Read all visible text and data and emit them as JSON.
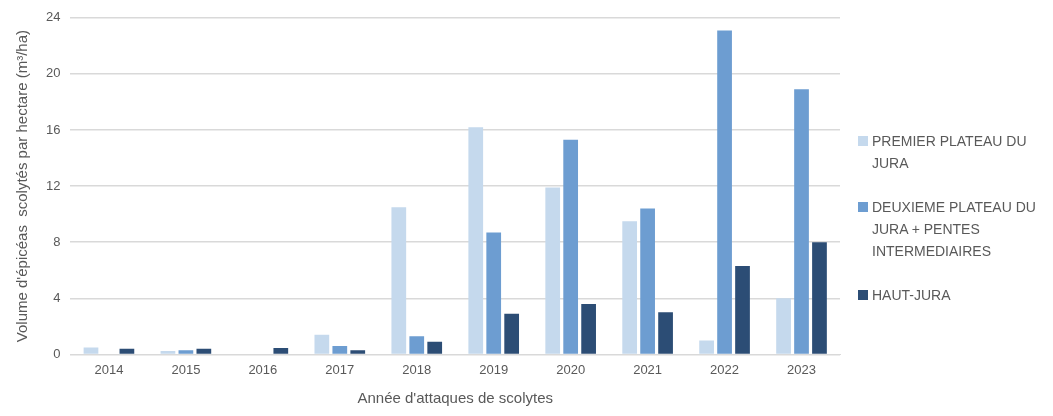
{
  "chart_data": {
    "type": "bar",
    "xlabel": "Année d'attaques de scolytes",
    "ylabel": "Volume d'épicéas  scolytés par hectare (m³/ha)",
    "categories": [
      "2014",
      "2015",
      "2016",
      "2017",
      "2018",
      "2019",
      "2020",
      "2021",
      "2022",
      "2023"
    ],
    "series": [
      {
        "name": "PREMIER PLATEAU DU JURA",
        "color": "#c5d9ed",
        "values": [
          0.5,
          0.25,
          null,
          1.4,
          10.5,
          16.2,
          11.9,
          9.5,
          1.0,
          4.0
        ]
      },
      {
        "name": "DEUXIEME PLATEAU DU JURA + PENTES INTERMEDIAIRES",
        "color": "#6d9dd1",
        "values": [
          null,
          0.3,
          null,
          0.6,
          1.3,
          8.7,
          15.3,
          10.4,
          23.1,
          18.9
        ]
      },
      {
        "name": "HAUT-JURA",
        "color": "#2c4d75",
        "values": [
          0.4,
          0.4,
          0.45,
          0.3,
          0.9,
          2.9,
          3.6,
          3.0,
          6.3,
          8.0
        ]
      }
    ],
    "ylim": [
      0,
      24
    ],
    "yticks": [
      0,
      4,
      8,
      12,
      16,
      20,
      24
    ],
    "grid": "y",
    "legend": "right"
  }
}
